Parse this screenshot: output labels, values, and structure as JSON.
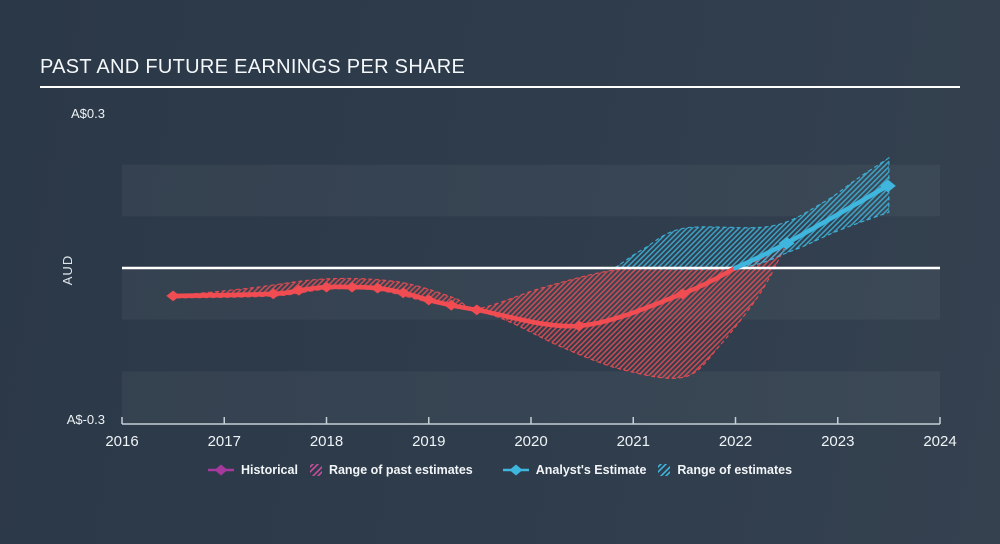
{
  "title": "PAST AND FUTURE EARNINGS PER SHARE",
  "colors": {
    "background": "#2e3c4c",
    "stripe": "rgba(255,255,255,0.045)",
    "zero_line": "#ffffff",
    "axis": "#c5cfd6",
    "text": "#f2f5f7",
    "historical": "#f04c52",
    "estimate": "#3eb6de",
    "legend_historical_marker": "#a5399e",
    "legend_past_range": "#c94f9b"
  },
  "y_axis": {
    "unit_label": "AUD",
    "top_label": "A$0.3",
    "bottom_label": "A$-0.3"
  },
  "chart_data": {
    "type": "line",
    "title": "PAST AND FUTURE EARNINGS PER SHARE",
    "ylabel": "AUD",
    "currency_symbol": "A$",
    "ylim": [
      -0.3,
      0.3
    ],
    "xlim": [
      2016,
      2024.35
    ],
    "x_ticks": [
      2016,
      2017,
      2018,
      2019,
      2020,
      2021,
      2022,
      2023,
      2024
    ],
    "y_tick_labels": {
      "top": "A$0.3",
      "bottom": "A$-0.3"
    },
    "zero_line": 0,
    "grid": "horizontal-stripes",
    "legend_position": "bottom-center",
    "series": [
      {
        "name": "Historical",
        "color": "#f04c52",
        "points": [
          {
            "x": 2016.5,
            "y": -0.054,
            "m": true
          },
          {
            "x": 2017.48,
            "y": -0.05,
            "m": true
          },
          {
            "x": 2017.73,
            "y": -0.043,
            "m": true
          },
          {
            "x": 2018.0,
            "y": -0.037,
            "m": true
          },
          {
            "x": 2018.25,
            "y": -0.037,
            "m": true
          },
          {
            "x": 2018.5,
            "y": -0.039,
            "m": true
          },
          {
            "x": 2018.75,
            "y": -0.048,
            "m": true
          },
          {
            "x": 2019.0,
            "y": -0.062,
            "m": true
          },
          {
            "x": 2019.22,
            "y": -0.072,
            "m": true
          },
          {
            "x": 2019.47,
            "y": -0.081,
            "m": true
          },
          {
            "x": 2020.47,
            "y": -0.112,
            "m": true
          },
          {
            "x": 2021.48,
            "y": -0.05,
            "m": true
          },
          {
            "x": 2022.0,
            "y": 0.0,
            "m": false
          }
        ]
      },
      {
        "name": "Analyst's Estimate",
        "color": "#3eb6de",
        "points": [
          {
            "x": 2022.0,
            "y": 0.0,
            "m": false
          },
          {
            "x": 2022.5,
            "y": 0.048,
            "m": true
          },
          {
            "x": 2023.49,
            "y": 0.159,
            "m": true
          }
        ]
      }
    ],
    "bands": [
      {
        "name": "Range of past estimates",
        "color": "#f04c52",
        "top": [
          [
            2016.5,
            -0.054
          ],
          [
            2017.25,
            -0.039
          ],
          [
            2018.0,
            -0.021
          ],
          [
            2018.7,
            -0.027
          ],
          [
            2019.25,
            -0.058
          ],
          [
            2019.47,
            -0.079
          ],
          [
            2020.1,
            -0.039
          ],
          [
            2020.7,
            -0.008
          ],
          [
            2021.1,
            0.0
          ],
          [
            2022.0,
            0.0
          ],
          [
            2022.5,
            0.048
          ]
        ],
        "bottom": [
          [
            2016.5,
            -0.058
          ],
          [
            2017.5,
            -0.054
          ],
          [
            2018.0,
            -0.041
          ],
          [
            2018.5,
            -0.043
          ],
          [
            2019.0,
            -0.066
          ],
          [
            2019.47,
            -0.083
          ],
          [
            2019.8,
            -0.105
          ],
          [
            2020.3,
            -0.153
          ],
          [
            2020.9,
            -0.197
          ],
          [
            2021.5,
            -0.211
          ],
          [
            2021.85,
            -0.149
          ],
          [
            2022.25,
            -0.046
          ],
          [
            2022.5,
            0.048
          ]
        ]
      },
      {
        "name": "Range of estimates",
        "color": "#3eb6de",
        "top": [
          [
            2020.82,
            0.0
          ],
          [
            2021.1,
            0.037
          ],
          [
            2021.5,
            0.077
          ],
          [
            2022.35,
            0.081
          ],
          [
            2022.85,
            0.126
          ],
          [
            2023.2,
            0.174
          ],
          [
            2023.5,
            0.213
          ]
        ],
        "bottom": [
          [
            2020.82,
            0.0
          ],
          [
            2022.0,
            0.0
          ],
          [
            2022.55,
            0.033
          ],
          [
            2023.0,
            0.072
          ],
          [
            2023.5,
            0.108
          ]
        ]
      }
    ],
    "legend": [
      {
        "label": "Historical",
        "swatch": "line-diamond",
        "color": "#a5399e"
      },
      {
        "label": "Range of past estimates",
        "swatch": "hatch",
        "color": "#c94f9b"
      },
      {
        "label": "Analyst's Estimate",
        "swatch": "line-diamond",
        "color": "#3eb6de"
      },
      {
        "label": "Range of estimates",
        "swatch": "hatch",
        "color": "#3eb6de"
      }
    ]
  }
}
